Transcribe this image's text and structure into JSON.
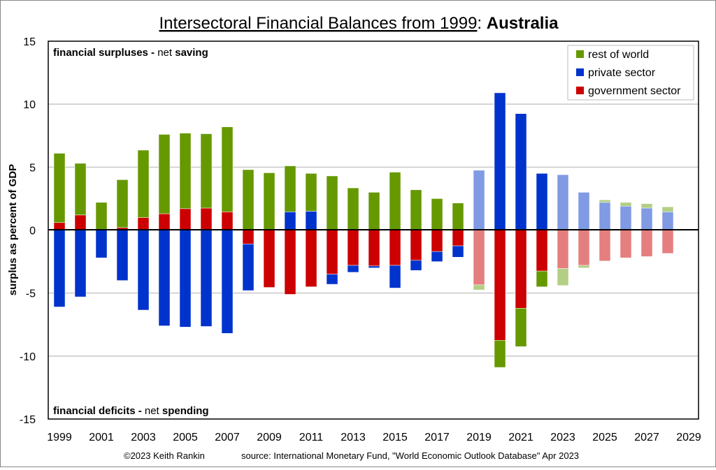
{
  "chart_data": {
    "type": "bar",
    "stacked": true,
    "title": "Intersectoral Financial Balances from 1999",
    "title_bold": "Australia",
    "ylabel": "surplus as percent of GDP",
    "ylim": [
      -15,
      15
    ],
    "yticks": [
      15,
      10,
      5,
      0,
      -5,
      -10,
      -15
    ],
    "xticks": [
      "1999",
      "2001",
      "2003",
      "2005",
      "2007",
      "2009",
      "2011",
      "2013",
      "2015",
      "2017",
      "2019",
      "2021",
      "2023",
      "2025",
      "2027",
      "2029"
    ],
    "grid": true,
    "legend_position": "top-right",
    "annotation_top": {
      "bold": "financial surpluses -",
      "normal": " net ",
      "bold2": "saving"
    },
    "annotation_bottom": {
      "bold": "financial deficits -",
      "normal": " net ",
      "bold2": "spending"
    },
    "footer_credit": "©2023 Keith Rankin",
    "footer_source": "source:  International Monetary Fund, \"World Economic Outlook Database\" Apr 2023",
    "categories": [
      1999,
      2000,
      2001,
      2002,
      2003,
      2004,
      2005,
      2006,
      2007,
      2008,
      2009,
      2010,
      2011,
      2012,
      2013,
      2014,
      2015,
      2016,
      2017,
      2018,
      2019,
      2020,
      2021,
      2022,
      2023,
      2024,
      2025,
      2026,
      2027,
      2028
    ],
    "light_shaded_years": [
      2019,
      2023,
      2024,
      2025,
      2026,
      2027,
      2028
    ],
    "series": [
      {
        "name": "rest of world",
        "color": "#669900",
        "light_color": "#b3cf85",
        "values": [
          5.5,
          4.1,
          2.2,
          3.8,
          5.35,
          6.3,
          6.0,
          5.9,
          6.75,
          4.8,
          4.55,
          3.65,
          3.0,
          4.3,
          3.35,
          3.0,
          4.6,
          3.2,
          2.5,
          2.15,
          -0.4,
          -2.15,
          -3.05,
          -1.25,
          -1.35,
          -0.2,
          0.2,
          0.3,
          0.35,
          0.4
        ]
      },
      {
        "name": "private sector",
        "color": "#0033cc",
        "light_color": "#809ae4",
        "values": [
          -6.1,
          -5.3,
          -2.2,
          -4.0,
          -6.35,
          -7.6,
          -7.7,
          -7.65,
          -8.2,
          -3.7,
          0,
          1.45,
          1.5,
          -0.8,
          -0.55,
          -0.15,
          -1.8,
          -0.8,
          -0.8,
          -0.9,
          4.75,
          10.9,
          9.25,
          4.5,
          4.4,
          3.0,
          2.2,
          1.9,
          1.75,
          1.45
        ]
      },
      {
        "name": "government sector",
        "color": "#cc0000",
        "light_color": "#e57f7f",
        "values": [
          0.6,
          1.2,
          0,
          0.2,
          1.0,
          1.3,
          1.7,
          1.75,
          1.45,
          -1.1,
          -4.55,
          -5.1,
          -4.5,
          -3.5,
          -2.8,
          -2.85,
          -2.8,
          -2.4,
          -1.7,
          -1.25,
          -4.35,
          -8.75,
          -6.2,
          -3.25,
          -3.05,
          -2.8,
          -2.45,
          -2.2,
          -2.1,
          -1.85
        ]
      }
    ]
  }
}
